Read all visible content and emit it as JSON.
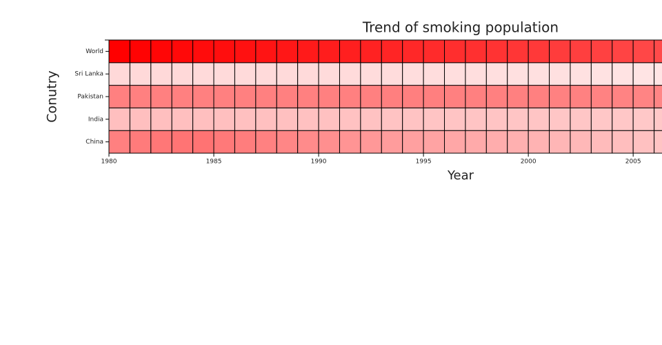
{
  "chart_data": {
    "type": "heatmap",
    "title": "Trend of smoking population",
    "xlabel": "Year",
    "ylabel": "Conutry",
    "x": [
      1980,
      1981,
      1982,
      1983,
      1984,
      1985,
      1986,
      1987,
      1988,
      1989,
      1990,
      1991,
      1992,
      1993,
      1994,
      1995,
      1996,
      1997,
      1998,
      1999,
      2000,
      2001,
      2002,
      2003,
      2004,
      2005,
      2006
    ],
    "categories": [
      "China",
      "India",
      "Pakistan",
      "Sri Lanka",
      "World"
    ],
    "z": [
      [
        15,
        15.5,
        16,
        16.3,
        16.5,
        15.8,
        15.3,
        14.8,
        14.2,
        13.7,
        13.2,
        12.6,
        12.1,
        11.7,
        11.2,
        10.8,
        10.4,
        10,
        9.6,
        9.3,
        9,
        8.6,
        8.3,
        8,
        7.6,
        7.3,
        6.9
      ],
      [
        7.5,
        7.5,
        7.5,
        7.5,
        7.5,
        7.5,
        7.4,
        7.4,
        7.4,
        7.3,
        7.3,
        7.2,
        7.2,
        7.1,
        7.1,
        7,
        7,
        6.9,
        6.9,
        6.8,
        6.8,
        6.7,
        6.7,
        6.6,
        6.6,
        6.5,
        6.5
      ],
      [
        15,
        15,
        15,
        15,
        15,
        15,
        15,
        15,
        15,
        15,
        15,
        15,
        15,
        15.1,
        15.1,
        15.1,
        15,
        15,
        15,
        14.9,
        14.9,
        14.8,
        14.8,
        14.7,
        14.6,
        14.5,
        14.4
      ],
      [
        4.5,
        4.5,
        4.5,
        4.5,
        4.4,
        4.4,
        4.4,
        4.3,
        4.3,
        4.3,
        4.2,
        4.2,
        4.1,
        4.1,
        4,
        4,
        3.9,
        3.9,
        3.8,
        3.7,
        3.7,
        3.6,
        3.5,
        3.4,
        3.3,
        3.2,
        3.1
      ],
      [
        30,
        29.7,
        29.3,
        29,
        28.6,
        28.3,
        28,
        27.6,
        27.3,
        27,
        26.6,
        26.3,
        26,
        25.6,
        25.3,
        25,
        24.6,
        24.3,
        24,
        23.6,
        23.3,
        23,
        22.6,
        22.3,
        22,
        21.6,
        21.3
      ]
    ],
    "zlim": [
      0,
      30
    ],
    "colorscale": [
      "#ffffff",
      "#ff0000"
    ],
    "xlim": [
      1980,
      2007
    ],
    "xticks": [
      1980,
      1985,
      1990,
      1995,
      2000,
      2005
    ]
  }
}
